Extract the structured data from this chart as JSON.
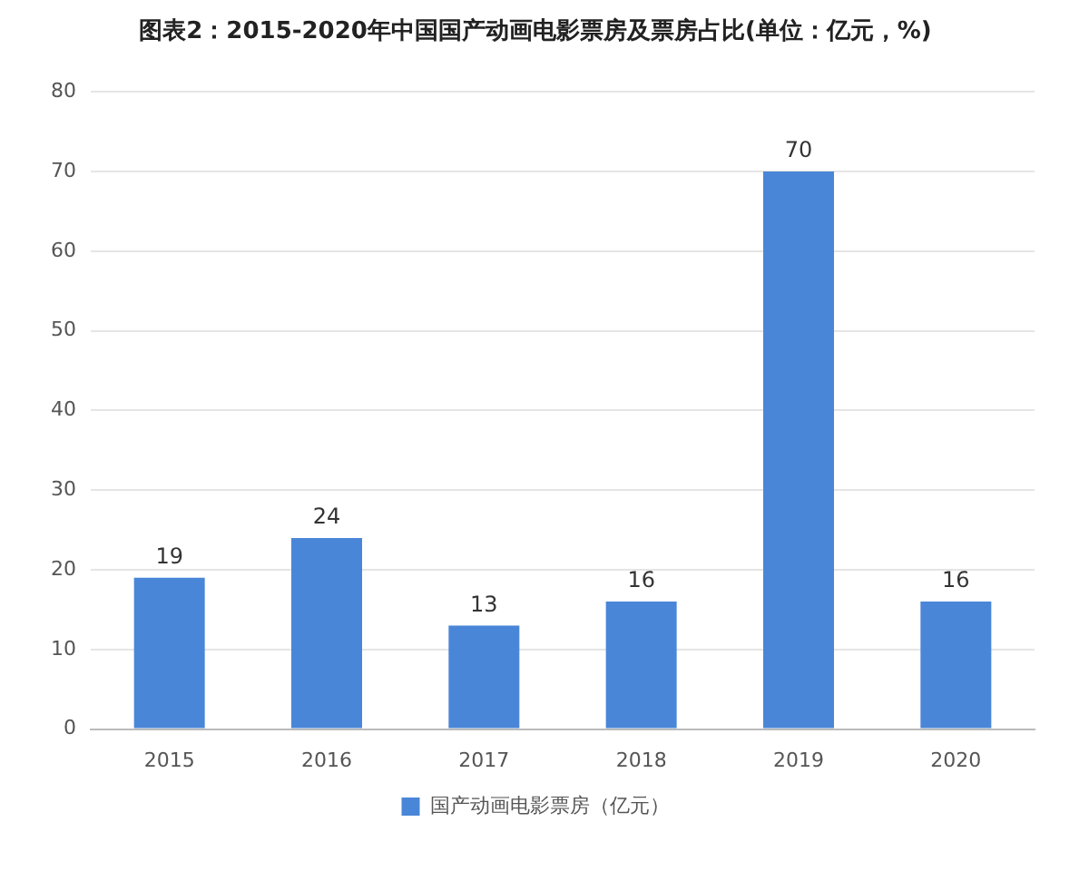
{
  "chart_data": {
    "type": "bar",
    "title": "图表2：2015-2020年中国国产动画电影票房及票房占比(单位：亿元，%)",
    "categories": [
      "2015",
      "2016",
      "2017",
      "2018",
      "2019",
      "2020"
    ],
    "series": [
      {
        "name": "国产动画电影票房（亿元）",
        "color": "#4a86d8",
        "values": [
          19,
          24,
          13,
          16,
          70,
          16
        ]
      }
    ],
    "ylim": [
      0,
      80
    ],
    "yticks": [
      0,
      10,
      20,
      30,
      40,
      50,
      60,
      70,
      80
    ],
    "grid": "y",
    "legend": "bottom",
    "data_labels": true
  }
}
